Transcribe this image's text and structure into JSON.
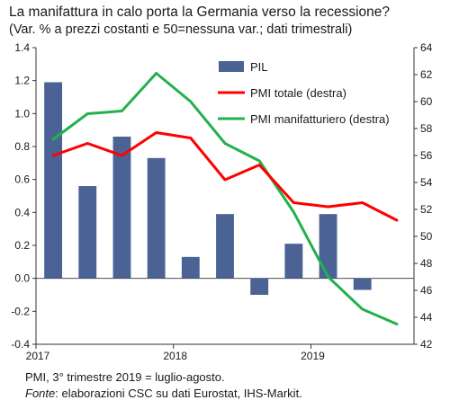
{
  "title": "La manifattura in calo porta la Germania verso la recessione?",
  "subtitle": "(Var. % a prezzi costanti e 50=nessuna var.; dati trimestrali)",
  "notes": {
    "line1": "PMI, 3° trimestre 2019 = luglio-agosto.",
    "source_label": "Fonte",
    "source_text": ": elaborazioni  CSC su dati Eurostat, IHS-Markit."
  },
  "colors": {
    "pil": "#4a6394",
    "pmi_totale": "#ff0000",
    "pmi_manifatturiero": "#22b14c"
  },
  "chart_data": {
    "type": "bar+line",
    "x": [
      "2017 Q1",
      "2017 Q2",
      "2017 Q3",
      "2017 Q4",
      "2018 Q1",
      "2018 Q2",
      "2018 Q3",
      "2018 Q4",
      "2019 Q1",
      "2019 Q2",
      "2019 Q3"
    ],
    "x_tick_labels": [
      {
        "label": "2017",
        "index": 0
      },
      {
        "label": "2018",
        "index": 4
      },
      {
        "label": "2019",
        "index": 8
      }
    ],
    "y_left": {
      "min": -0.4,
      "max": 1.4,
      "step": 0.2,
      "ticks": [
        "-0.4",
        "-0.2",
        "0.0",
        "0.2",
        "0.4",
        "0.6",
        "0.8",
        "1.0",
        "1.2",
        "1.4"
      ]
    },
    "y_right": {
      "min": 42,
      "max": 64,
      "step": 2,
      "ticks": [
        "42",
        "44",
        "46",
        "48",
        "50",
        "52",
        "54",
        "56",
        "58",
        "60",
        "62",
        "64"
      ]
    },
    "series": [
      {
        "name": "PIL",
        "type": "bar",
        "axis": "left",
        "values": [
          1.19,
          0.56,
          0.86,
          0.73,
          0.13,
          0.39,
          -0.1,
          0.21,
          0.39,
          -0.07,
          null
        ]
      },
      {
        "name": "PMI totale (destra)",
        "type": "line",
        "axis": "right",
        "values": [
          56.0,
          56.9,
          56.0,
          57.7,
          57.3,
          54.2,
          55.3,
          52.5,
          52.2,
          52.5,
          51.2
        ]
      },
      {
        "name": "PMI manifatturiero  (destra)",
        "type": "line",
        "axis": "right",
        "values": [
          57.2,
          59.1,
          59.3,
          62.1,
          60.0,
          56.9,
          55.6,
          51.8,
          47.0,
          44.6,
          43.5
        ]
      }
    ],
    "legend_placement": "top-right",
    "grid": false
  }
}
